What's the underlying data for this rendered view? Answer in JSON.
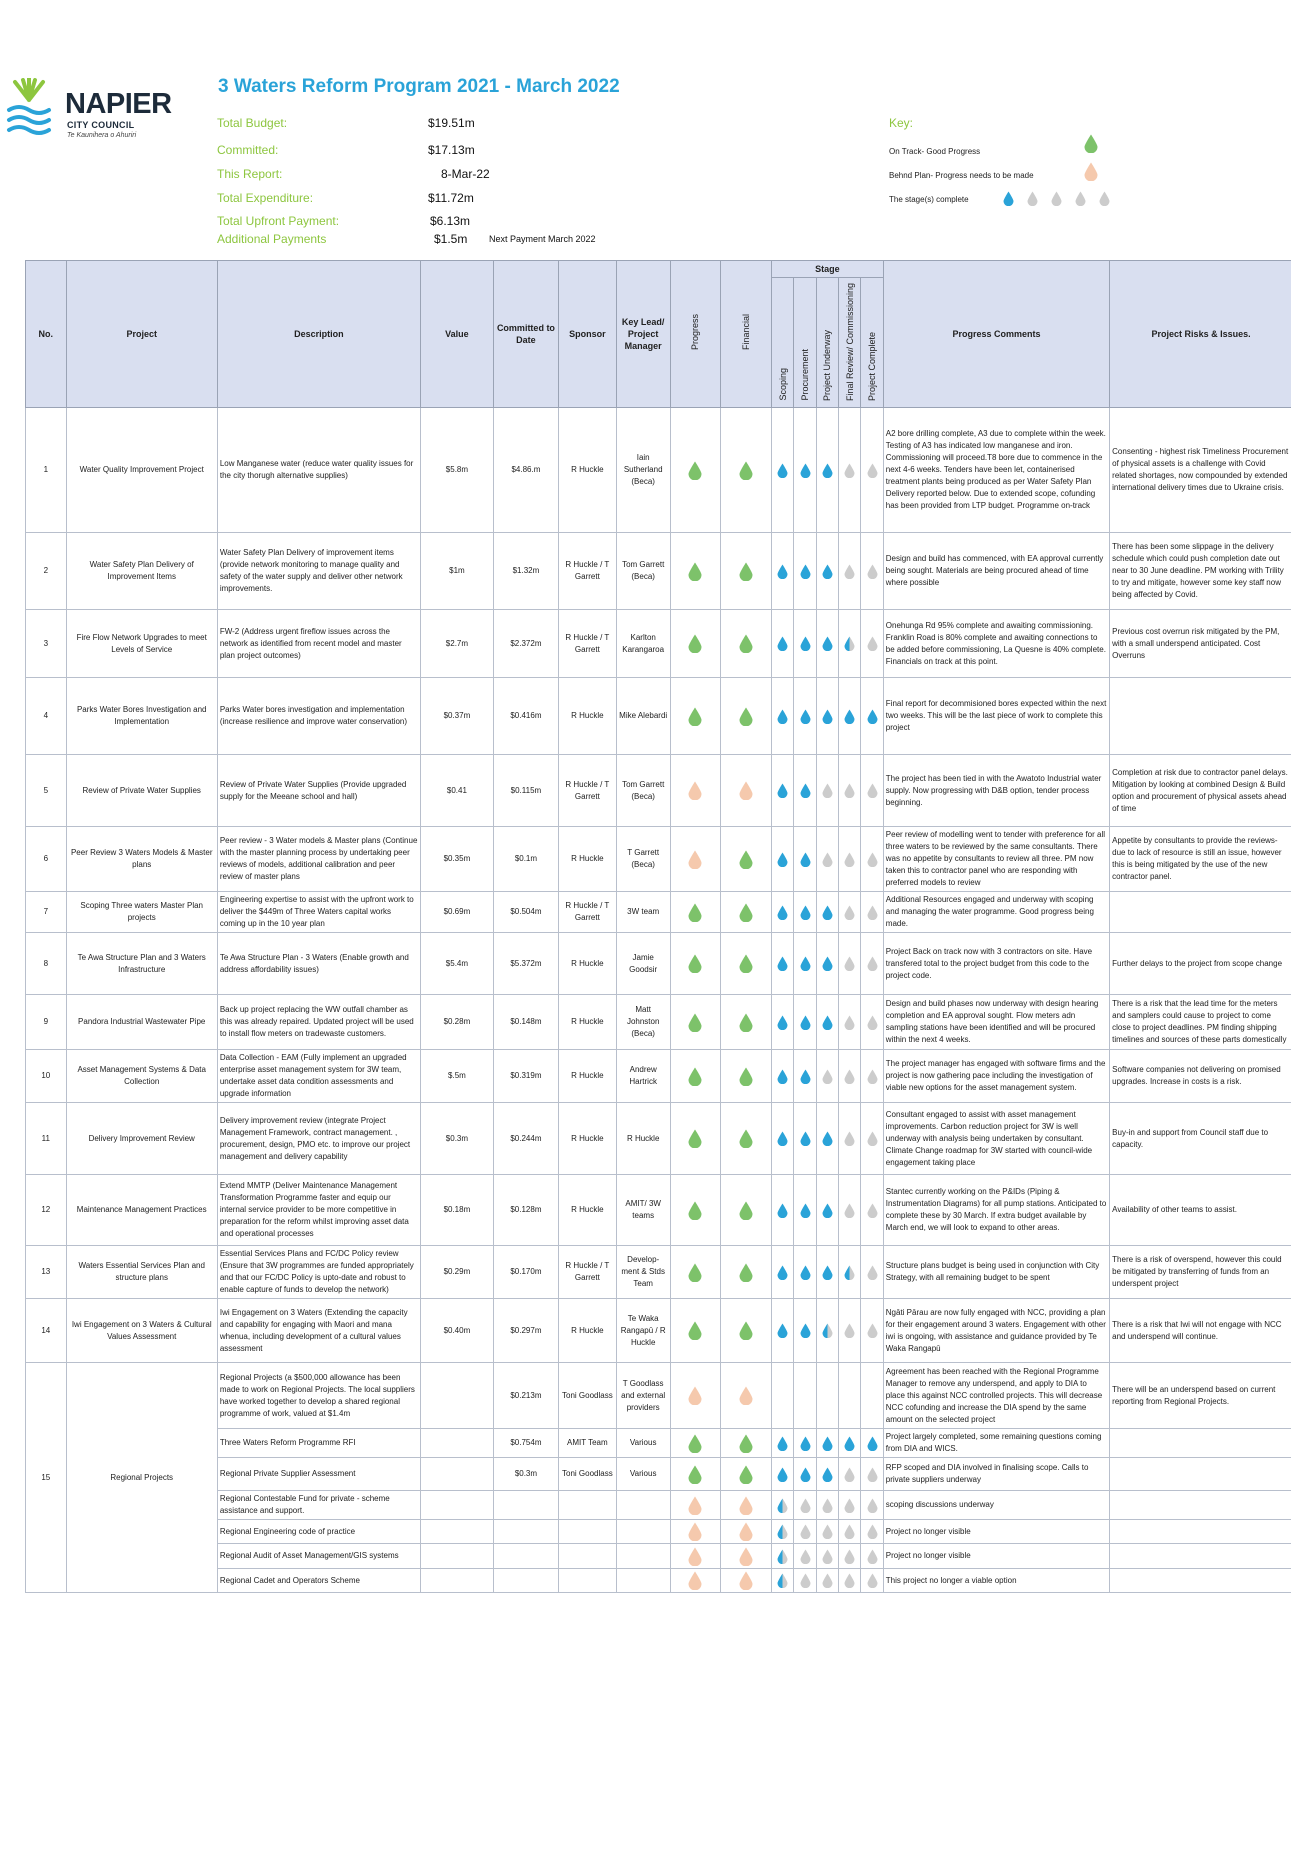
{
  "logo": {
    "name": "NAPIER",
    "subtitle": "CITY COUNCIL",
    "tagline": "Te Kaunihera o Ahuriri"
  },
  "title": "3 Waters Reform Program 2021 - March 2022",
  "summary": [
    {
      "label": "Total Budget:",
      "value": "$19.51m"
    },
    {
      "label": "Committed:",
      "value": "$17.13m"
    },
    {
      "label": "This Report:",
      "value": "8-Mar-22"
    },
    {
      "label": "Total Expenditure:",
      "value": "$11.72m"
    },
    {
      "label": "Total Upfront Payment:",
      "value": "$6.13m"
    },
    {
      "label": "Additional Payments",
      "value": "$1.5m"
    }
  ],
  "next_payment": "Next Payment March 2022",
  "key": {
    "label": "Key:",
    "on_track": "On Track- Good Progress",
    "behind": "Behnd Plan- Progress needs to be made",
    "stage": "The stage(s) complete"
  },
  "colors": {
    "green": "#7dc26a",
    "peach": "#f5c9ad",
    "blue": "#2aa3d8",
    "grey": "#cccccc",
    "header": "#d9dff0",
    "title": "#2aa3d8",
    "label": "#8dc63f"
  },
  "headers": {
    "no": "No.",
    "project": "Project",
    "description": "Description",
    "value": "Value",
    "committed": "Committed to Date",
    "sponsor": "Sponsor",
    "lead": "Key Lead/ Project Manager",
    "progress": "Progress",
    "financial": "Financial",
    "stage": "Stage",
    "scoping": "Scoping",
    "procurement": "Procurement",
    "underway": "Project Underway",
    "review": "Final Review/ Commissioning",
    "complete": "Project Complete",
    "comments": "Progress Comments",
    "risks": "Project Risks & Issues."
  },
  "rows": [
    {
      "no": "1",
      "project": "Water Quality Improvement Project",
      "desc": "Low Manganese water (reduce water quality issues for the city thorugh alternative supplies)",
      "value": "$5.8m",
      "committed": "$4.86.m",
      "sponsor": "R Huckle",
      "lead": "Iain Sutherland (Beca)",
      "progress": "g",
      "financial": "g",
      "stages": "BBBGG",
      "comments": "A2 bore drilling complete, A3 due to complete within the week. Testing of A3 has indicated low manganese and iron. Commissioning will proceed.T8 bore due to commence in the next 4-6 weeks. Tenders have been let, containerised treatment plants being produced as per Water Safety Plan Delivery reported below. Due to extended scope, cofunding has been provided from LTP budget. Programme on-track",
      "risks": "Consenting - highest risk Timeliness Procurement of physical assets is a challenge with Covid related shortages, now compounded by extended international delivery times due to Ukraine crisis.",
      "h": 125
    },
    {
      "no": "2",
      "project": "Water Safety Plan Delivery of Improvement Items",
      "desc": "Water Safety Plan Delivery of improvement items (provide network monitoring to manage quality and safety of the water supply and deliver other network improvements.",
      "value": "$1m",
      "committed": "$1.32m",
      "sponsor": "R Huckle / T Garrett",
      "lead": "Tom Garrett (Beca)",
      "progress": "g",
      "financial": "g",
      "stages": "BBBGG",
      "comments": "Design and build has commenced, with EA approval currently being sought. Materials are being procured ahead of time where possible",
      "risks": "There has been some slippage in the delivery schedule which could push completion date out near to 30 June deadline. PM working with Trility to try and mitigate, however some key staff now being affected by Covid.",
      "h": 77
    },
    {
      "no": "3",
      "project": "Fire Flow Network Upgrades to meet Levels of Service",
      "desc": "FW-2 (Address urgent fireflow issues across the network as identified from recent model and master plan project outcomes)",
      "value": "$2.7m",
      "committed": "$2.372m",
      "sponsor": "R Huckle / T Garrett",
      "lead": "Karlton Karangaroa",
      "progress": "g",
      "financial": "g",
      "stages": "BBBHG",
      "comments": "Onehunga Rd 95% complete and awaiting commissioning. Franklin Road is 80% complete and awaiting connections to be added before commissioning, La Quesne is 40% complete. Financials on track at this point.",
      "risks": "Previous cost overrun risk mitigated by the PM, with a small underspend anticipated. Cost Overruns",
      "h": 68
    },
    {
      "no": "4",
      "project": "Parks Water Bores Investigation and Implementation",
      "desc": "Parks Water bores investigation and implementation (increase resilience and improve water conservation)",
      "value": "$0.37m",
      "committed": "$0.416m",
      "sponsor": "R Huckle",
      "lead": "Mike Alebardi",
      "progress": "g",
      "financial": "g",
      "stages": "BBBBB",
      "comments": "Final report for decommisioned bores expected within the next two weeks. This will be the last piece of work to complete this project",
      "risks": "",
      "h": 77
    },
    {
      "no": "5",
      "project": "Review of Private Water Supplies",
      "desc": "Review of Private Water Supplies (Provide upgraded supply for the Meeane school and hall)",
      "value": "$0.41",
      "committed": "$0.115m",
      "sponsor": "R Huckle / T Garrett",
      "lead": "Tom Garrett (Beca)",
      "progress": "p",
      "financial": "p",
      "stages": "BBGGG",
      "comments": "The project has been tied in with the Awatoto Industrial water supply. Now progressing with D&B option, tender process beginning.",
      "risks": "Completion at risk due to contractor panel delays. Mitigation by looking at combined Design & Build option and procurement of physical assets ahead of time",
      "h": 72
    },
    {
      "no": "6",
      "project": "Peer Review 3 Waters Models & Master plans",
      "desc": "Peer review - 3 Water models & Master plans (Continue with the master planning process by undertaking peer reviews of models, additional calibration and peer review of master plans",
      "value": "$0.35m",
      "committed": "$0.1m",
      "sponsor": "R Huckle",
      "lead": "T Garrett (Beca)",
      "progress": "p",
      "financial": "g",
      "stages": "BBGGG",
      "comments": "Peer review of modelling went to tender with preference for all three waters to be reviewed by the same consultants. There was no appetite by consultants to review all three. PM now taken this to contractor panel who are responding with preferred models to review",
      "risks": "Appetite by consultants to provide the reviews-due to lack of resource is still an issue, however this is being mitigated by the use of the new contractor panel.",
      "h": 61
    },
    {
      "no": "7",
      "project": "Scoping Three waters Master Plan projects",
      "desc": "Engineering expertise to assist with the upfront work to deliver the $449m of Three Waters capital works coming up in the 10 year plan",
      "value": "$0.69m",
      "committed": "$0.504m",
      "sponsor": "R Huckle / T Garrett",
      "lead": "3W team",
      "progress": "g",
      "financial": "g",
      "stages": "BBBGG",
      "comments": "Additional Resources engaged and underway with scoping and managing the water programme. Good progress being made.",
      "risks": "",
      "h": 30
    },
    {
      "no": "8",
      "project": "Te Awa Structure Plan and 3 Waters Infrastructure",
      "desc": "Te Awa Structure Plan - 3 Waters (Enable growth and address affordability issues)",
      "value": "$5.4m",
      "committed": "$5.372m",
      "sponsor": "R Huckle",
      "lead": "Jamie Goodsir",
      "progress": "g",
      "financial": "g",
      "stages": "BBBGG",
      "comments": "Project Back on track now with 3 contractors on site. Have transfered total to the project budget from this code to the project code.",
      "risks": "Further delays to the project from scope change",
      "h": 62
    },
    {
      "no": "9",
      "project": "Pandora Industrial Wastewater Pipe",
      "desc": "Back up project replacing the WW outfall chamber as this was already repaired. Updated project will be used to install flow meters on tradewaste customers.",
      "value": "$0.28m",
      "committed": "$0.148m",
      "sponsor": "R Huckle",
      "lead": "Matt Johnston (Beca)",
      "progress": "g",
      "financial": "g",
      "stages": "BBBGG",
      "comments": "Design and build phases now underway with design hearing completion and EA approval sought. Flow meters adn sampling stations have been identified and will be procured within the next 4 weeks.",
      "risks": "There is a risk that the lead time for the meters and samplers could cause to project to come close to project deadlines. PM finding shipping timelines and sources of these parts domestically",
      "h": 55
    },
    {
      "no": "10",
      "project": "Asset Management Systems & Data Collection",
      "desc": "Data Collection - EAM (Fully implement an upgraded enterprise asset management system for 3W team, undertake asset data condition assessments and upgrade information",
      "value": "$.5m",
      "committed": "$0.319m",
      "sponsor": "R Huckle",
      "lead": "Andrew Hartrick",
      "progress": "g",
      "financial": "g",
      "stages": "BBGGG",
      "comments": "The project manager has engaged with software firms and the project is now gathering pace including the investigation of viable new options for the asset management system.",
      "risks": "Software companies not delivering on promised upgrades. Increase in costs is a risk.",
      "h": 42
    },
    {
      "no": "11",
      "project": "Delivery Improvement Review",
      "desc": "Delivery improvement review (integrate Project Management Framework, contract management. , procurement, design, PMO etc. to improve our project management and delivery capability",
      "value": "$0.3m",
      "committed": "$0.244m",
      "sponsor": "R Huckle",
      "lead": "R Huckle",
      "progress": "g",
      "financial": "g",
      "stages": "BBBGG",
      "comments": "Consultant engaged to assist with asset management improvements. Carbon reduction project for 3W is well underway with analysis being undertaken by consultant. Climate Change roadmap for 3W started with council-wide engagement taking place",
      "risks": "Buy-in and support from Council staff due to capacity.",
      "h": 72
    },
    {
      "no": "12",
      "project": "Maintenance Management Practices",
      "desc": "Extend MMTP (Deliver Maintenance Management Transformation Programme faster and equip our internal service provider to be more competitive in preparation for the reform whilst improving asset data and operational processes",
      "value": "$0.18m",
      "committed": "$0.128m",
      "sponsor": "R Huckle",
      "lead": "AMIT/ 3W teams",
      "progress": "g",
      "financial": "g",
      "stages": "BBBGG",
      "comments": "Stantec currently working on the P&IDs (Piping & Instrumentation Diagrams) for all pump stations. Anticipated to complete these by 30 March. If extra budget available by March end, we will look to expand to other areas.",
      "risks": "Availability of other teams to assist.",
      "h": 71
    },
    {
      "no": "13",
      "project": "Waters Essential Services Plan and structure plans",
      "desc": "Essential Services Plans and FC/DC Policy review (Ensure that 3W programmes are funded appropriately and that our FC/DC Policy is upto-date and robust to enable capture of funds to develop the network)",
      "value": "$0.29m",
      "committed": "$0.170m",
      "sponsor": "R Huckle / T Garrett",
      "lead": "Develop-ment & Stds Team",
      "progress": "g",
      "financial": "g",
      "stages": "BBBHG",
      "comments": "Structure plans budget is being used in conjunction with City Strategy, with all remaining budget to be spent",
      "risks": "There is a risk of overspend, however this could be mitigated by transferring of funds from an underspent project",
      "h": 52
    },
    {
      "no": "14",
      "project": "Iwi Engagement on 3 Waters & Cultural Values Assessment",
      "desc": "Iwi Engagement on 3 Waters (Extending the capacity and capability for engaging with Maori and mana whenua, including development of a cultural values assessment",
      "value": "$0.40m",
      "committed": "$0.297m",
      "sponsor": "R Huckle",
      "lead": "Te Waka Rangapū / R Huckle",
      "progress": "g",
      "financial": "g",
      "stages": "BBHGG",
      "comments": "Ngāti Pārau are now fully engaged with NCC, providing a plan for their engagement around 3 waters. Engagement with other iwi is ongoing, with assistance and guidance provided by Te Waka Rangapū",
      "risks": "There is a risk that Iwi will not engage with NCC and underspend will continue.",
      "h": 64
    }
  ],
  "group15": {
    "no": "15",
    "project": "Regional Projects",
    "rows": [
      {
        "desc": "Regional Projects (a $500,000 allowance has been made to work on Regional Projects. The local suppliers have worked together to develop a shared regional programme of work, valued at $1.4m",
        "value": "",
        "committed": "$0.213m",
        "sponsor": "Toni Goodlass",
        "lead": "T Goodlass and external providers",
        "progress": "p",
        "financial": "p",
        "stages": "",
        "comments": "Agreement has been reached with the Regional Programme Manager to remove any underspend, and apply to DIA to place this against NCC controlled projects. This will decrease NCC cofunding and increase the DIA spend by the same amount on the selected project",
        "risks": "There will be an underspend based on current reporting from Regional Projects.",
        "h": 66
      },
      {
        "desc": "Three Waters Reform Programme RFI",
        "value": "",
        "committed": "$0.754m",
        "sponsor": "AMIT Team",
        "lead": "Various",
        "progress": "g",
        "financial": "g",
        "stages": "BBBBB",
        "comments": "Project largely completed, some remaining questions coming from DIA and WICS.",
        "risks": "",
        "h": 25
      },
      {
        "desc": "Regional Private Supplier Assessment",
        "value": "",
        "committed": "$0.3m",
        "sponsor": "Toni Goodlass",
        "lead": "Various",
        "progress": "g",
        "financial": "g",
        "stages": "BBBGG",
        "comments": "RFP scoped and DIA involved in finalising scope. Calls to private suppliers underway",
        "risks": "",
        "h": 33
      },
      {
        "desc": "Regional Contestable Fund for private - scheme assistance and support.",
        "value": "",
        "committed": "",
        "sponsor": "",
        "lead": "",
        "progress": "p",
        "financial": "p",
        "stages": "HGGGG",
        "comments": "scoping discussions underway",
        "risks": "",
        "h": 24
      },
      {
        "desc": "Regional Engineering code of practice",
        "value": "",
        "committed": "",
        "sponsor": "",
        "lead": "",
        "progress": "p",
        "financial": "p",
        "stages": "HGGGG",
        "comments": "Project no longer visible",
        "risks": "",
        "h": 24
      },
      {
        "desc": "Regional Audit of Asset Management/GIS systems",
        "value": "",
        "committed": "",
        "sponsor": "",
        "lead": "",
        "progress": "p",
        "financial": "p",
        "stages": "HGGGG",
        "comments": "Project no longer visible",
        "risks": "",
        "h": 25
      },
      {
        "desc": "Regional Cadet and Operators Scheme",
        "value": "",
        "committed": "",
        "sponsor": "",
        "lead": "",
        "progress": "p",
        "financial": "p",
        "stages": "HGGGG",
        "comments": "This project no longer a viable option",
        "risks": "",
        "h": 24
      }
    ]
  }
}
